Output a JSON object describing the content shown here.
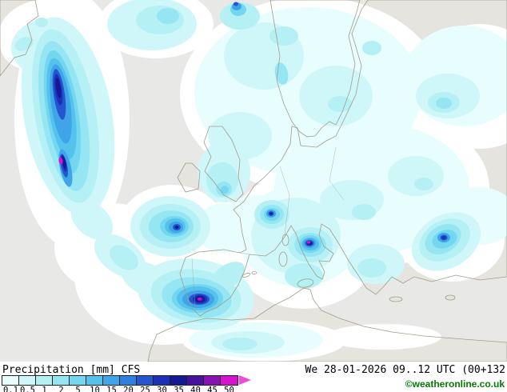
{
  "map": {
    "background_color": "#e8e8e7",
    "land_color": "#e6e4df",
    "coastline_color": "#a29c8a",
    "trace_color": "#ffffff"
  },
  "legend": {
    "labels": [
      "0.1",
      "0.5",
      "1",
      "2",
      "5",
      "10",
      "15",
      "20",
      "25",
      "30",
      "35",
      "40",
      "45",
      "50"
    ],
    "colors": [
      "#e8fdfd",
      "#cff7f9",
      "#b5f0f5",
      "#95e6f2",
      "#73d7f0",
      "#55c2ee",
      "#3fa4e8",
      "#2f7fdf",
      "#2456cf",
      "#1c30b8",
      "#151a94",
      "#47129c",
      "#8912b2",
      "#d414cf"
    ],
    "arrow_color": "#ef49dc"
  },
  "footer": {
    "title": "Precipitation [mm] CFS",
    "datetime": "We 28-01-2026 09..12 UTC (00+132",
    "copyright": "©weatheronline.co.uk"
  }
}
